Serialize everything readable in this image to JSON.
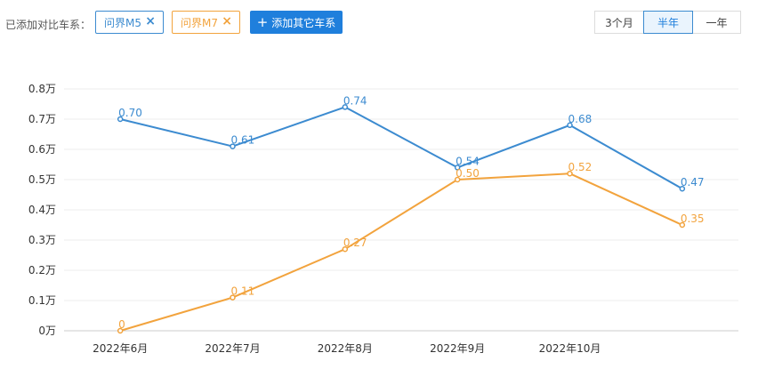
{
  "toolbar": {
    "compare_label": "已添加对比车系：",
    "tags": [
      {
        "label": "问界M5",
        "color": "#3c8bd0"
      },
      {
        "label": "问界M7",
        "color": "#f2a33d"
      }
    ],
    "remove_icon": "×",
    "add_button_icon": "+",
    "add_button": "添加其它车系",
    "periods": [
      "3个月",
      "半年",
      "一年"
    ],
    "active_period": "半年"
  },
  "chart_data": {
    "type": "line",
    "categories": [
      "2022年6月",
      "2022年7月",
      "2022年8月",
      "2022年9月",
      "2022年10月",
      ""
    ],
    "yticks": [
      "0万",
      "0.1万",
      "0.2万",
      "0.3万",
      "0.4万",
      "0.5万",
      "0.6万",
      "0.7万",
      "0.8万"
    ],
    "ylim": [
      0,
      0.8
    ],
    "grid": true,
    "series": [
      {
        "name": "问界M5",
        "color": "#3c8bd0",
        "values": [
          0.7,
          0.61,
          0.74,
          0.54,
          0.68,
          0.47
        ],
        "labels": [
          "0.70",
          "0.61",
          "0.74",
          "0.54",
          "0.68",
          "0.47"
        ]
      },
      {
        "name": "问界M7",
        "color": "#f2a33d",
        "values": [
          0,
          0.11,
          0.27,
          0.5,
          0.52,
          0.35
        ],
        "labels": [
          "0",
          "0.11",
          "0.27",
          "0.50",
          "0.52",
          "0.35"
        ]
      }
    ]
  }
}
